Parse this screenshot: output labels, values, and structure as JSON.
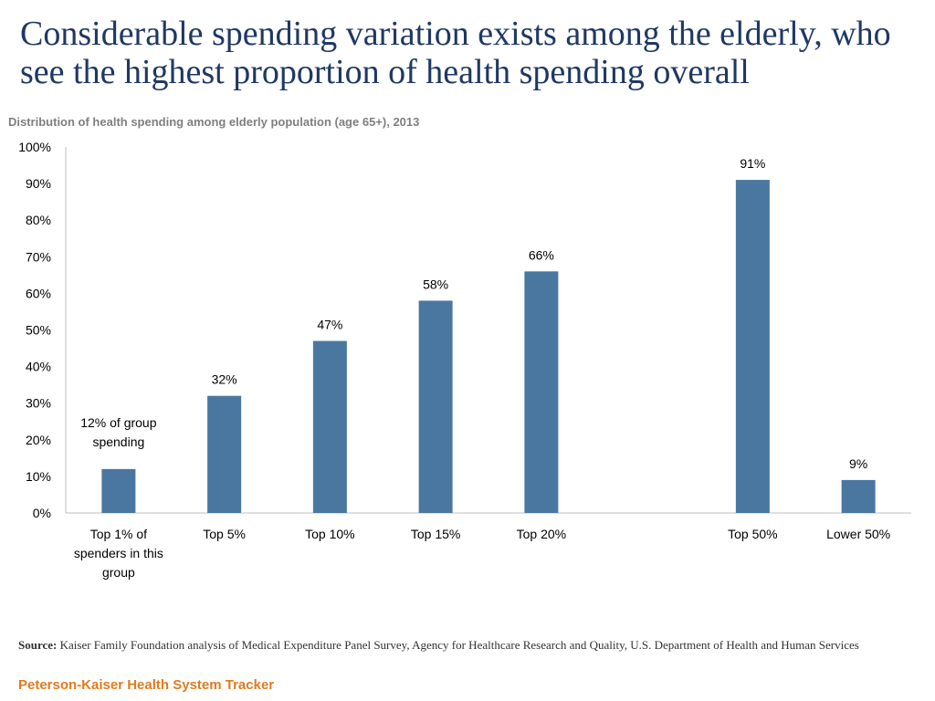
{
  "title": "Considerable spending variation exists among the elderly, who see the highest proportion of health spending overall",
  "subtitle": "Distribution of health spending among elderly population (age 65+), 2013",
  "colors": {
    "bar": "#4a77a0",
    "title": "#1f3864",
    "footer": "#e07b1f"
  },
  "chart_data": {
    "type": "bar",
    "categories": [
      "Top 1% of spenders in this group",
      "Top 5%",
      "Top 10%",
      "Top 15%",
      "Top 20%",
      "Top 50%",
      "Lower 50%"
    ],
    "category_lines": [
      [
        "Top 1% of",
        "spenders in this",
        "group"
      ],
      [
        "Top 5%"
      ],
      [
        "Top 10%"
      ],
      [
        "Top 15%"
      ],
      [
        "Top 20%"
      ],
      [
        "Top 50%"
      ],
      [
        "Lower 50%"
      ]
    ],
    "values": [
      12,
      32,
      47,
      58,
      66,
      91,
      9
    ],
    "data_labels": [
      [
        "12% of group",
        "spending"
      ],
      [
        "32%"
      ],
      [
        "47%"
      ],
      [
        "58%"
      ],
      [
        "66%"
      ],
      [
        "91%"
      ],
      [
        "9%"
      ]
    ],
    "y_ticks": [
      "0%",
      "10%",
      "20%",
      "30%",
      "40%",
      "50%",
      "60%",
      "70%",
      "80%",
      "90%",
      "100%"
    ],
    "ylim": [
      0,
      100
    ],
    "ylabel": "",
    "xlabel": ""
  },
  "source": {
    "label": "Source:",
    "text": "Kaiser Family Foundation analysis of Medical Expenditure Panel Survey, Agency for Healthcare Research and Quality, U.S. Department of Health and Human Services"
  },
  "footer": "Peterson-Kaiser Health System Tracker"
}
